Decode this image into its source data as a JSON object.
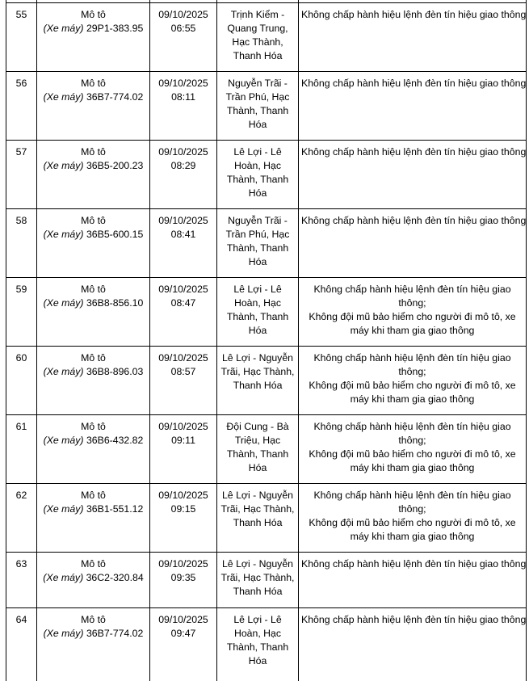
{
  "rows": [
    {
      "no": "55",
      "type": "Mô tô",
      "sub": "(Xe máy)",
      "plate": "29P1-383.95",
      "date": "09/10/2025",
      "time": "06:55",
      "place": "Trịnh Kiểm - Quang Trung, Hạc Thành, Thanh Hóa",
      "violations": [
        "Không chấp hành hiệu lệnh đèn tín hiệu giao thông"
      ]
    },
    {
      "no": "56",
      "type": "Mô tô",
      "sub": "(Xe máy)",
      "plate": "36B7-774.02",
      "date": "09/10/2025",
      "time": "08:11",
      "place": "Nguyễn Trãi - Trần Phú, Hạc Thành, Thanh Hóa",
      "violations": [
        "Không chấp hành hiệu lệnh đèn tín hiệu giao thông"
      ]
    },
    {
      "no": "57",
      "type": "Mô tô",
      "sub": "(Xe máy)",
      "plate": "36B5-200.23",
      "date": "09/10/2025",
      "time": "08:29",
      "place": "Lê Lợi - Lê Hoàn, Hạc Thành, Thanh Hóa",
      "violations": [
        "Không chấp hành hiệu lệnh đèn tín hiệu giao thông"
      ]
    },
    {
      "no": "58",
      "type": "Mô tô",
      "sub": "(Xe máy)",
      "plate": "36B5-600.15",
      "date": "09/10/2025",
      "time": "08:41",
      "place": "Nguyễn Trãi - Trần Phú, Hạc Thành, Thanh Hóa",
      "violations": [
        "Không chấp hành hiệu lệnh đèn tín hiệu giao thông"
      ]
    },
    {
      "no": "59",
      "type": "Mô tô",
      "sub": "(Xe máy)",
      "plate": "36B8-856.10",
      "date": "09/10/2025",
      "time": "08:47",
      "place": "Lê Lợi - Lê Hoàn, Hạc Thành, Thanh Hóa",
      "violations": [
        "Không chấp hành hiệu lệnh đèn tín hiệu giao thông;",
        "Không đội mũ bảo hiểm cho người đi mô tô, xe máy khi tham gia giao thông"
      ]
    },
    {
      "no": "60",
      "type": "Mô tô",
      "sub": "(Xe máy)",
      "plate": "36B8-896.03",
      "date": "09/10/2025",
      "time": "08:57",
      "place": "Lê Lợi - Nguyễn Trãi, Hạc Thành, Thanh Hóa",
      "violations": [
        "Không chấp hành hiệu lệnh đèn tín hiệu giao thông;",
        "Không đội mũ bảo hiểm cho người đi mô tô, xe máy khi tham gia giao thông"
      ]
    },
    {
      "no": "61",
      "type": "Mô tô",
      "sub": "(Xe máy)",
      "plate": "36B6-432.82",
      "date": "09/10/2025",
      "time": "09:11",
      "place": "Đội Cung - Bà Triệu, Hạc Thành, Thanh Hóa",
      "violations": [
        "Không chấp hành hiệu lệnh đèn tín hiệu giao thông;",
        "Không đội mũ bảo hiểm cho người đi mô tô, xe máy khi tham gia giao thông"
      ]
    },
    {
      "no": "62",
      "type": "Mô tô",
      "sub": "(Xe máy)",
      "plate": "36B1-551.12",
      "date": "09/10/2025",
      "time": "09:15",
      "place": "Lê Lợi - Nguyễn Trãi, Hạc Thành, Thanh Hóa",
      "violations": [
        "Không chấp hành hiệu lệnh đèn tín hiệu giao thông;",
        "Không đội mũ bảo hiểm cho người đi mô tô, xe máy khi tham gia giao thông"
      ]
    },
    {
      "no": "63",
      "type": "Mô tô",
      "sub": "(Xe máy)",
      "plate": "36C2-320.84",
      "date": "09/10/2025",
      "time": "09:35",
      "place": "Lê Lợi - Nguyễn Trãi, Hạc Thành, Thanh Hóa",
      "violations": [
        "Không chấp hành hiệu lệnh đèn tín hiệu giao thông"
      ]
    },
    {
      "no": "64",
      "type": "Mô tô",
      "sub": "(Xe máy)",
      "plate": "36B7-774.02",
      "date": "09/10/2025",
      "time": "09:47",
      "place": "Lê Lợi - Lê Hoàn, Hạc Thành, Thanh Hóa",
      "violations": [
        "Không chấp hành hiệu lệnh đèn tín hiệu giao thông"
      ]
    }
  ]
}
